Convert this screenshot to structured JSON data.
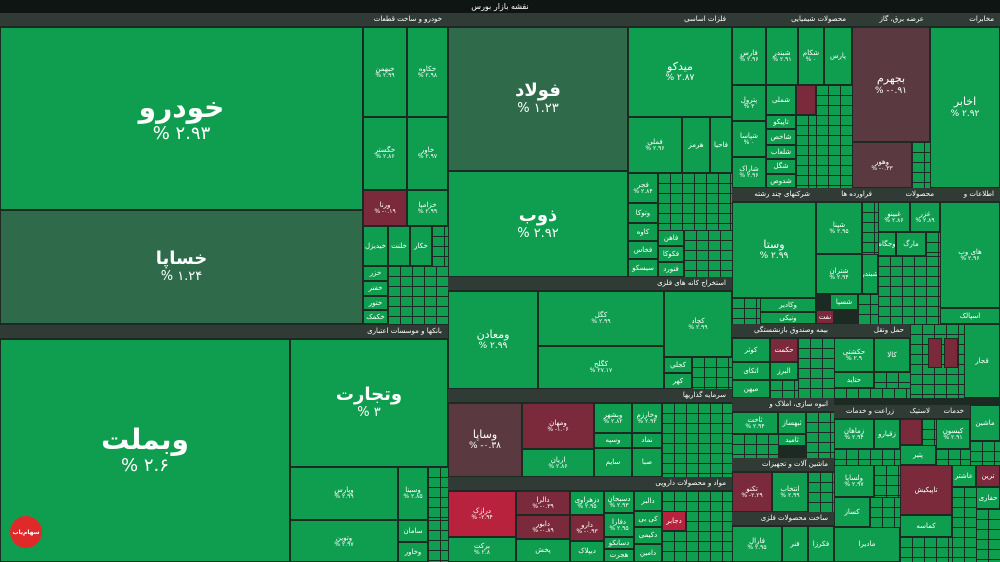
{
  "title": "نقشه بازار بورس",
  "logo_text": "سهام‌یاب",
  "sections": {
    "auto": "خودرو و ساخت قطعات",
    "banks": "بانکها و موسسات اعتباری",
    "metals": "فلزات اساسی",
    "mining": "استخراج کانه های فلزی",
    "invest": "سرمایه گذاریها",
    "pharma": "مواد و محصولات دارویی",
    "chem": "محصولات شیمیایی",
    "utility": "عرضه برق، گاز",
    "telecom": "مخابرات",
    "multi": "شرکتهای چند رشته",
    "refinery": "فراورده ها",
    "products": "محصولات",
    "info": "اطلاعات و",
    "fund": "بیمه وصندوق بازنشستگی",
    "transport": "حمل ونقل",
    "building": "انبوه سازی، املاک و",
    "farm": "زراعت و خدمات",
    "plastic": "لاستیک",
    "services": "خدمات",
    "machinery": "ماشین آلات و تجهیزات",
    "metalprod": "ساخت محصولات فلزی"
  },
  "tiles": {
    "khodro": {
      "name": "خودرو",
      "pct": "% ۲.۹۳"
    },
    "khsapa": {
      "name": "خساپا",
      "pct": "% ۱.۲۴"
    },
    "khbahman": {
      "name": "خبهمن",
      "pct": "% ۲.۹۹"
    },
    "khkaveh": {
      "name": "خکاوه",
      "pct": "% ۲.۹۸"
    },
    "khgostar": {
      "name": "خگستر",
      "pct": "% ۲.۸۶"
    },
    "khavar": {
      "name": "خاور",
      "pct": "% ۲.۹۷"
    },
    "khzamia": {
      "name": "خزامیا",
      "pct": "% ۲.۹۹"
    },
    "vernaa": {
      "name": "ورنا",
      "pct": "% -۰.۱۹"
    },
    "khaydezhak": {
      "name": "خیدیزل",
      "pct": ""
    },
    "khlent": {
      "name": "خلنت",
      "pct": ""
    },
    "khekar": {
      "name": "خکار",
      "pct": ""
    },
    "khzar": {
      "name": "خزر",
      "pct": ""
    },
    "khfanar": {
      "name": "خفنر",
      "pct": ""
    },
    "khtoor": {
      "name": "ختور",
      "pct": ""
    },
    "khmohar": {
      "name": "خمهر",
      "pct": ""
    },
    "khkamak": {
      "name": "خکمک",
      "pct": ""
    },
    "vbemellat": {
      "name": "وبملت",
      "pct": "% ۲.۶"
    },
    "vtejarat": {
      "name": "وتجارت",
      "pct": "% ۳"
    },
    "vparis": {
      "name": "وپارس",
      "pct": "% ۲.۹۹"
    },
    "vsina": {
      "name": "وسینا",
      "pct": "% ۲.۸۵"
    },
    "vtoosin": {
      "name": "وتوین",
      "pct": "% ۲.۹۷"
    },
    "saman": {
      "name": "سامان",
      "pct": ""
    },
    "vkhavar": {
      "name": "وخاور",
      "pct": ""
    },
    "foolad": {
      "name": "فولاد",
      "pct": "% ۱.۲۳"
    },
    "midko": {
      "name": "میدکو",
      "pct": "% ۲.۸۷"
    },
    "zob": {
      "name": "ذوب",
      "pct": "% ۲.۹۲"
    },
    "fameli": {
      "name": "فملی",
      "pct": "% ۲.۹۶"
    },
    "hormoz": {
      "name": "هرمز",
      "pct": ""
    },
    "faha": {
      "name": "فاحیا",
      "pct": ""
    },
    "fajr": {
      "name": "فجر",
      "pct": "% ۲.۸۴"
    },
    "vtoka": {
      "name": "وتوکا",
      "pct": ""
    },
    "kaveh": {
      "name": "کاوه",
      "pct": ""
    },
    "fkhas": {
      "name": "فخاس",
      "pct": ""
    },
    "fsisko": {
      "name": "سیسکو",
      "pct": ""
    },
    "fmohar": {
      "name": "فاهن",
      "pct": ""
    },
    "fkooka": {
      "name": "فکوکا",
      "pct": ""
    },
    "fnoorn": {
      "name": "فنورد",
      "pct": ""
    },
    "vmaaden": {
      "name": "ومعادن",
      "pct": "% ۲.۹۹"
    },
    "kagol": {
      "name": "کگل",
      "pct": "% ۲.۹۹"
    },
    "kchad": {
      "name": "کچاد",
      "pct": "% ۲.۹۹"
    },
    "ktel": {
      "name": "کگلح",
      "pct": "% ۲۷.۱۷"
    },
    "kajal": {
      "name": "کجلي",
      "pct": ""
    },
    "kahar": {
      "name": "کهر",
      "pct": ""
    },
    "vsapa": {
      "name": "وساپا",
      "pct": "% -۰.۳۸"
    },
    "vmehan": {
      "name": "ومهان",
      "pct": "% -۱.۰۶"
    },
    "vbshahr": {
      "name": "وبشهر",
      "pct": "% ۲.۸۲"
    },
    "vkharazm": {
      "name": "وخارزم",
      "pct": "% ۲.۹۲"
    },
    "aryan": {
      "name": "اریان",
      "pct": "% ۲.۸۶"
    },
    "vnamad": {
      "name": "نماد",
      "pct": ""
    },
    "vsema": {
      "name": "وسپه",
      "pct": ""
    },
    "saim": {
      "name": "سایم",
      "pct": ""
    },
    "sepa": {
      "name": "صبا",
      "pct": ""
    },
    "darazk": {
      "name": "درازک",
      "pct": "% -۲.۹۴"
    },
    "dalra": {
      "name": "دالرا",
      "pct": "% -۰.۳۹"
    },
    "dzahravi": {
      "name": "دزهراوی",
      "pct": "% ۲.۹۵"
    },
    "dobeir": {
      "name": "دابور",
      "pct": "% -۰.۸۹"
    },
    "dsebhan": {
      "name": "دسبحان",
      "pct": "% ۲.۹۳"
    },
    "daro": {
      "name": "دارو",
      "pct": "% -۰.۹۳"
    },
    "dfara": {
      "name": "دفارا",
      "pct": "% ۲.۹۵"
    },
    "barkat": {
      "name": "برکت",
      "pct": "% ۲.۸"
    },
    "pakhsh": {
      "name": "پخش",
      "pct": ""
    },
    "dalbor": {
      "name": "دالبر",
      "pct": ""
    },
    "dkhara": {
      "name": "دکیمی",
      "pct": ""
    },
    "dijaber": {
      "name": "دجابر",
      "pct": ""
    },
    "ddana": {
      "name": "ددانا",
      "pct": ""
    },
    "dfiz": {
      "name": "دفیزا",
      "pct": ""
    },
    "diplak": {
      "name": "دیپلاک",
      "pct": ""
    },
    "hojrat": {
      "name": "هجرت",
      "pct": ""
    },
    "damin": {
      "name": "دامین",
      "pct": ""
    },
    "dsanko": {
      "name": "دسانکو",
      "pct": ""
    },
    "shesfa": {
      "name": "کی بی",
      "pct": ""
    },
    "shfars": {
      "name": "فارس",
      "pct": "% ۲.۹۶"
    },
    "shendi": {
      "name": "شبندر",
      "pct": "% ۲.۹۱"
    },
    "shskam": {
      "name": "شکام",
      "pct": "% ۰"
    },
    "shpars": {
      "name": "پارس",
      "pct": ""
    },
    "shpetrol": {
      "name": "پترول",
      "pct": "% ۳"
    },
    "shemli": {
      "name": "شملی",
      "pct": ""
    },
    "shtapiko": {
      "name": "تاپیکو",
      "pct": ""
    },
    "shsaha": {
      "name": "شپاسا",
      "pct": "% ۰"
    },
    "shaksa": {
      "name": "شاخص",
      "pct": ""
    },
    "shlab": {
      "name": "شلعاب",
      "pct": ""
    },
    "shkol": {
      "name": "شگل",
      "pct": ""
    },
    "shshrad": {
      "name": "شاراک",
      "pct": "% ۲.۹۶"
    },
    "shdos": {
      "name": "شدوص",
      "pct": ""
    },
    "bjahrom": {
      "name": "بجهرم",
      "pct": "% -۰.۹۱"
    },
    "vhor": {
      "name": "وهور",
      "pct": "% -۰.۳۳"
    },
    "akhaber": {
      "name": "اخابر",
      "pct": "% ۲.۹۲"
    },
    "vsasta": {
      "name": "وستا",
      "pct": "% ۲.۹۹"
    },
    "vakadir": {
      "name": "وکادیر",
      "pct": ""
    },
    "vnikal": {
      "name": "ونیکی",
      "pct": ""
    },
    "shpna": {
      "name": "شپنا",
      "pct": "% ۲.۹۵"
    },
    "shtran": {
      "name": "شتران",
      "pct": "% ۲.۹۴"
    },
    "shbandar": {
      "name": "شبندر",
      "pct": ""
    },
    "shesfa2": {
      "name": "شسپا",
      "pct": ""
    },
    "nanat": {
      "name": "نفت",
      "pct": ""
    },
    "gheni": {
      "name": "غبینو",
      "pct": "% ۲.۸۶"
    },
    "ghaz": {
      "name": "غزر",
      "pct": "% ۲.۸۹"
    },
    "vgegat": {
      "name": "وجگاه",
      "pct": ""
    },
    "ghmark": {
      "name": "مارگ",
      "pct": ""
    },
    "hiweb": {
      "name": "های وب",
      "pct": "% ۲.۹۶"
    },
    "aspalk": {
      "name": "اسپالک",
      "pct": ""
    },
    "vkovar": {
      "name": "کوثر",
      "pct": ""
    },
    "vhekmat": {
      "name": "حکمت",
      "pct": ""
    },
    "valborz": {
      "name": "البرز",
      "pct": ""
    },
    "vatki": {
      "name": "اتکای",
      "pct": ""
    },
    "vmihan": {
      "name": "میهن",
      "pct": ""
    },
    "hkashti": {
      "name": "حکشتی",
      "pct": "% ۲.۹"
    },
    "hkala": {
      "name": "کالا",
      "pct": ""
    },
    "hhaabad": {
      "name": "حتاید",
      "pct": ""
    },
    "hparis": {
      "name": "حپارس",
      "pct": ""
    },
    "hfajar": {
      "name": "فجار",
      "pct": ""
    },
    "sakhab": {
      "name": "ثاخت",
      "pct": "% ۲.۹۴"
    },
    "thbehsaz": {
      "name": "ثبهساز",
      "pct": ""
    },
    "thamid": {
      "name": "ثامید",
      "pct": ""
    },
    "zamhar": {
      "name": "زماهان",
      "pct": "% ۲.۹۴"
    },
    "zgharb": {
      "name": "زقیارو",
      "pct": ""
    },
    "ptayer": {
      "name": "پتایر",
      "pct": ""
    },
    "kisoon": {
      "name": "کیسون",
      "pct": "% ۲.۹۱"
    },
    "mashin": {
      "name": "ماشین",
      "pct": ""
    },
    "takno": {
      "name": "تکنو",
      "pct": "% -۲.۲۹"
    },
    "lakhab": {
      "name": "انتخاب",
      "pct": "% ۲.۹۹"
    },
    "vlsapa": {
      "name": "ولساپا",
      "pct": "% ۲.۹۷"
    },
    "faral": {
      "name": "فارال",
      "pct": "% ۲.۹۵"
    },
    "fenar": {
      "name": "فنر",
      "pct": ""
    },
    "fekorza": {
      "name": "فکرزا",
      "pct": ""
    },
    "ktap": {
      "name": "تاپیکیش",
      "pct": ""
    },
    "kamasa": {
      "name": "کماسه",
      "pct": ""
    },
    "madira": {
      "name": "مادیرا",
      "pct": ""
    },
    "kesaz": {
      "name": "کساز",
      "pct": ""
    },
    "khmashin": {
      "name": "ماشین",
      "pct": ""
    },
    "tarin": {
      "name": "ترین",
      "pct": ""
    },
    "hafar": {
      "name": "حفاری",
      "pct": ""
    },
    "wadi": {
      "name": "وسپ",
      "pct": ""
    },
    "ghajar": {
      "name": "قجار",
      "pct": ""
    },
    "madena": {
      "name": "مدنا",
      "pct": ""
    },
    "lastik": {
      "name": "پتیر",
      "pct": ""
    },
    "ashtar": {
      "name": "عاشتر",
      "pct": ""
    }
  }
}
